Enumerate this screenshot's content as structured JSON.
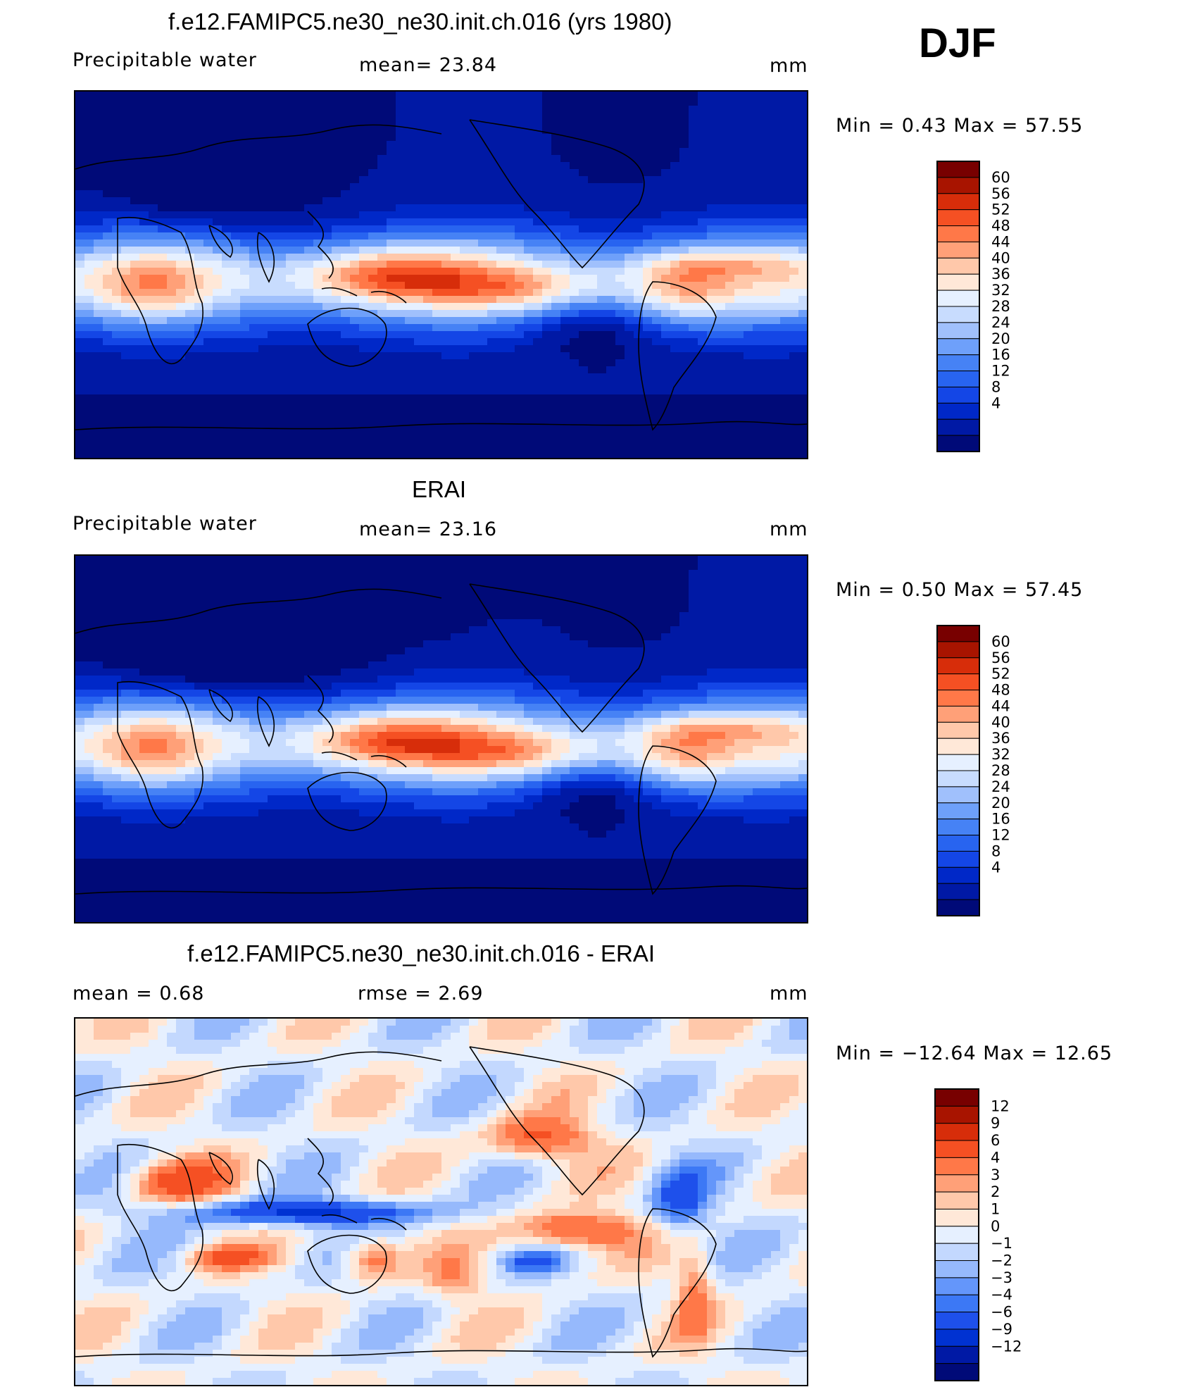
{
  "season": "DJF",
  "colors": {
    "abs_scale": [
      "#000a78",
      "#0019a5",
      "#0028c8",
      "#1446e6",
      "#2864f0",
      "#4682f5",
      "#6ea0fa",
      "#a0c0fc",
      "#c8dcfe",
      "#e6f0ff",
      "#ffe8d8",
      "#ffc8aa",
      "#ffa078",
      "#ff7848",
      "#f55023",
      "#d72d0a",
      "#a81400",
      "#780000"
    ],
    "diff_scale": [
      "#000a78",
      "#0019a5",
      "#0032d2",
      "#1e50eb",
      "#3c78f5",
      "#6496fa",
      "#96b9fc",
      "#c3d8fe",
      "#e6f0ff",
      "#ffe8d8",
      "#ffc8aa",
      "#ffa078",
      "#ff7848",
      "#f55023",
      "#d72d0a",
      "#a81400",
      "#780000"
    ]
  },
  "panels": [
    {
      "title": "f.e12.FAMIPC5.ne30_ne30.init.ch.016 (yrs 1980)",
      "left_label": "Precipitable  water",
      "center_label": "mean=   23.84",
      "units": "mm",
      "minmax": "Min  =     0.43  Max  =    57.55",
      "cbar_labels": [
        "60",
        "56",
        "52",
        "48",
        "44",
        "40",
        "36",
        "32",
        "28",
        "24",
        "20",
        "16",
        "12",
        "8",
        "4"
      ]
    },
    {
      "title": "ERAI",
      "left_label": "Precipitable  water",
      "center_label": "mean=   23.16",
      "units": "mm",
      "minmax": "Min  =     0.50  Max  =    57.45",
      "cbar_labels": [
        "60",
        "56",
        "52",
        "48",
        "44",
        "40",
        "36",
        "32",
        "28",
        "24",
        "20",
        "16",
        "12",
        "8",
        "4"
      ]
    },
    {
      "title": "f.e12.FAMIPC5.ne30_ne30.init.ch.016 - ERAI",
      "left_label": "mean  =      0.68",
      "center_label": "rmse  =      2.69",
      "units": "mm",
      "minmax": "Min  = −12.64  Max  =    12.65",
      "cbar_labels": [
        "12",
        "9",
        "6",
        "4",
        "3",
        "2",
        "1",
        "0",
        "−1",
        "−2",
        "−3",
        "−4",
        "−6",
        "−9",
        "−12"
      ]
    }
  ]
}
